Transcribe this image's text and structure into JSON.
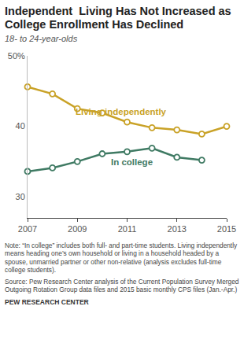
{
  "chart_data": {
    "type": "line",
    "title": "Independent  Living Has Not Increased as College Enrollment Has Declined",
    "subtitle": "18- to 24-year-olds",
    "x": [
      2007,
      2008,
      2009,
      2010,
      2011,
      2012,
      2013,
      2014,
      2015
    ],
    "series": [
      {
        "name": "Living independently",
        "color": "#c9a227",
        "marker": "circle-open",
        "values": [
          45.6,
          44.6,
          42.5,
          41.9,
          40.6,
          39.8,
          39.5,
          38.9,
          40.0
        ]
      },
      {
        "name": "In college",
        "color": "#3f7a63",
        "marker": "circle-open",
        "values": [
          33.6,
          34.1,
          35.0,
          36.1,
          36.4,
          36.9,
          35.6,
          35.2,
          null
        ]
      }
    ],
    "xlim": [
      2007,
      2015
    ],
    "xticks": [
      2007,
      2009,
      2011,
      2013,
      2015
    ],
    "ylim": [
      27,
      50
    ],
    "yticks": [
      30,
      40,
      {
        "value": 50,
        "label": "50%"
      }
    ],
    "grid": false
  },
  "notes": {
    "note": "Note: “In college” includes both full- and part-time students. Living independently means heading one’s own household or living in a household headed by a spouse, unmarried partner or other non-relative (analysis excludes full-time college students).",
    "source": "Source: Pew Research Center analysis of the Current Population Survey Merged Outgoing Rotation Group data files and 2015 basic monthly CPS files (Jan.-Apr.)",
    "credit": "PEW RESEARCH CENTER"
  }
}
